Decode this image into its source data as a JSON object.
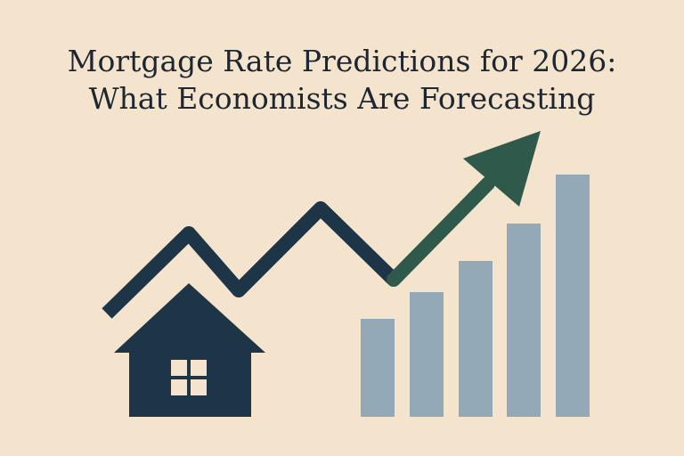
{
  "title": {
    "line1": "Mortgage Rate Predictions for 2026:",
    "line2": "What Economists Are Forecasting"
  }
}
